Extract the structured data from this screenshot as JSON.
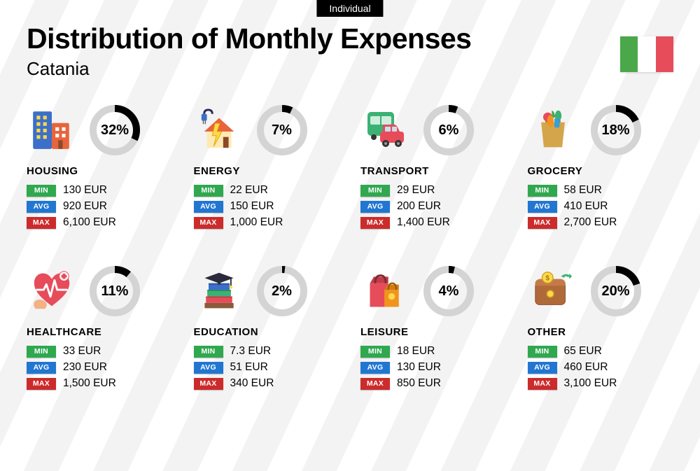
{
  "badge": "Individual",
  "title": "Distribution of Monthly Expenses",
  "subtitle": "Catania",
  "flag_colors": [
    "#4aa84a",
    "#ffffff",
    "#e74c5a"
  ],
  "chips": {
    "min": {
      "label": "MIN",
      "color": "#2fa84f"
    },
    "avg": {
      "label": "AVG",
      "color": "#2176d2"
    },
    "max": {
      "label": "MAX",
      "color": "#cc2b2b"
    }
  },
  "wheel": {
    "bg_color": "#d4d4d4",
    "fg_color": "#000000",
    "stroke_width": 10,
    "radius": 31
  },
  "categories": [
    {
      "key": "housing",
      "name": "HOUSING",
      "percent": 32,
      "min": "130 EUR",
      "avg": "920 EUR",
      "max": "6,100 EUR"
    },
    {
      "key": "energy",
      "name": "ENERGY",
      "percent": 7,
      "min": "22 EUR",
      "avg": "150 EUR",
      "max": "1,000 EUR"
    },
    {
      "key": "transport",
      "name": "TRANSPORT",
      "percent": 6,
      "min": "29 EUR",
      "avg": "200 EUR",
      "max": "1,400 EUR"
    },
    {
      "key": "grocery",
      "name": "GROCERY",
      "percent": 18,
      "min": "58 EUR",
      "avg": "410 EUR",
      "max": "2,700 EUR"
    },
    {
      "key": "healthcare",
      "name": "HEALTHCARE",
      "percent": 11,
      "min": "33 EUR",
      "avg": "230 EUR",
      "max": "1,500 EUR"
    },
    {
      "key": "education",
      "name": "EDUCATION",
      "percent": 2,
      "min": "7.3 EUR",
      "avg": "51 EUR",
      "max": "340 EUR"
    },
    {
      "key": "leisure",
      "name": "LEISURE",
      "percent": 4,
      "min": "18 EUR",
      "avg": "130 EUR",
      "max": "850 EUR"
    },
    {
      "key": "other",
      "name": "OTHER",
      "percent": 20,
      "min": "65 EUR",
      "avg": "460 EUR",
      "max": "3,100 EUR"
    }
  ]
}
